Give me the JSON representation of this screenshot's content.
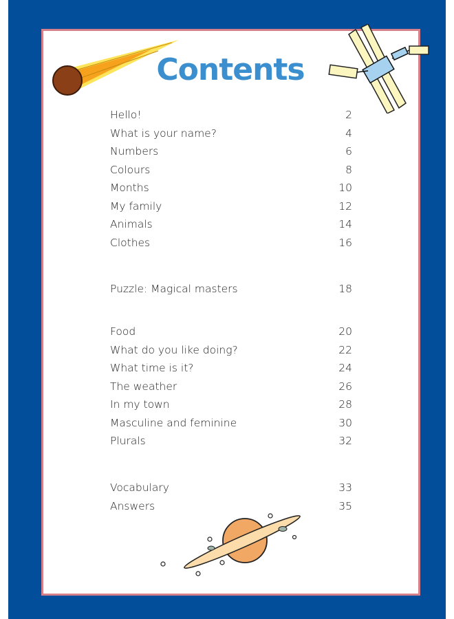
{
  "title": "Contents",
  "entries": [
    {
      "label": "Hello!",
      "page": "2"
    },
    {
      "label": "What is your name?",
      "page": "4"
    },
    {
      "label": "Numbers",
      "page": "6"
    },
    {
      "label": "Colours",
      "page": "8"
    },
    {
      "label": "Months",
      "page": "10"
    },
    {
      "label": "My family",
      "page": "12"
    },
    {
      "label": "Animals",
      "page": "14"
    },
    {
      "label": "Clothes",
      "page": "16"
    },
    {
      "label": "Puzzle: Magical masters",
      "page": "18"
    },
    {
      "label": "Food",
      "page": "20"
    },
    {
      "label": "What do you like doing?",
      "page": "22"
    },
    {
      "label": "What time is it?",
      "page": "24"
    },
    {
      "label": "The weather",
      "page": "26"
    },
    {
      "label": "In my town",
      "page": "28"
    },
    {
      "label": "Masculine and feminine",
      "page": "30"
    },
    {
      "label": "Plurals",
      "page": "32"
    },
    {
      "label": "Vocabulary",
      "page": "33"
    },
    {
      "label": "Answers",
      "page": "35"
    }
  ],
  "colors": {
    "background": "#034e9b",
    "frame_border": "#d6808c",
    "title": "#3b8fce"
  },
  "illustrations": [
    "comet-icon",
    "satellite-icon",
    "planet-saturn-icon"
  ]
}
